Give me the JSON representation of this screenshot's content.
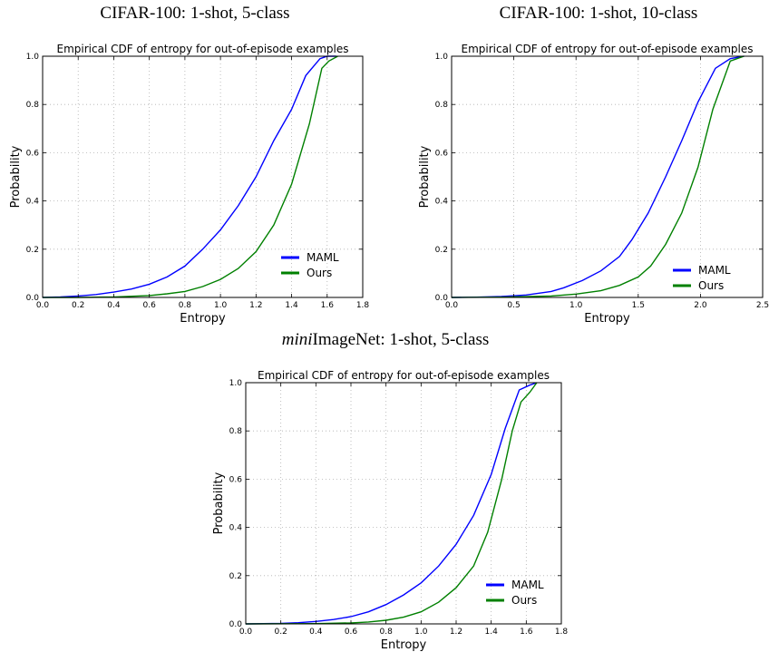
{
  "panels": [
    {
      "caption_prefix": "",
      "caption_rest": "CIFAR-100: 1-shot, 5-class"
    },
    {
      "caption_prefix": "",
      "caption_rest": "CIFAR-100: 1-shot, 10-class"
    },
    {
      "caption_prefix": "mini",
      "caption_rest": "ImageNet: 1-shot, 5-class"
    }
  ],
  "chart_data": [
    {
      "type": "line",
      "title": "Empirical CDF of entropy for out-of-episode examples",
      "xlabel": "Entropy",
      "ylabel": "Probability",
      "xlim": [
        0,
        1.8
      ],
      "ylim": [
        0,
        1.0
      ],
      "xticks": [
        "0.0",
        "0.2",
        "0.4",
        "0.6",
        "0.8",
        "1.0",
        "1.2",
        "1.4",
        "1.6",
        "1.8"
      ],
      "yticks": [
        "0.0",
        "0.2",
        "0.4",
        "0.6",
        "0.8",
        "1.0"
      ],
      "grid": true,
      "legend": "lower-right",
      "series": [
        {
          "name": "MAML",
          "color": "#0000ff",
          "x": [
            0,
            0.1,
            0.2,
            0.3,
            0.4,
            0.5,
            0.6,
            0.7,
            0.8,
            0.9,
            1.0,
            1.1,
            1.2,
            1.3,
            1.4,
            1.48,
            1.56,
            1.6,
            1.65
          ],
          "y": [
            0,
            0.002,
            0.006,
            0.012,
            0.022,
            0.035,
            0.055,
            0.085,
            0.13,
            0.2,
            0.28,
            0.38,
            0.5,
            0.65,
            0.78,
            0.92,
            0.99,
            1.0,
            1.0
          ]
        },
        {
          "name": "Ours",
          "color": "#008000",
          "x": [
            0,
            0.2,
            0.4,
            0.6,
            0.7,
            0.8,
            0.9,
            1.0,
            1.1,
            1.2,
            1.3,
            1.4,
            1.5,
            1.57,
            1.61,
            1.66
          ],
          "y": [
            0,
            0,
            0.002,
            0.008,
            0.015,
            0.025,
            0.045,
            0.075,
            0.12,
            0.19,
            0.3,
            0.47,
            0.72,
            0.95,
            0.98,
            1.0
          ]
        }
      ]
    },
    {
      "type": "line",
      "title": "Empirical CDF of entropy for out-of-episode examples",
      "xlabel": "Entropy",
      "ylabel": "Probability",
      "xlim": [
        0,
        2.5
      ],
      "ylim": [
        0,
        1.0
      ],
      "xticks": [
        "0.0",
        "0.5",
        "1.0",
        "1.5",
        "2.0",
        "2.5"
      ],
      "yticks": [
        "0.0",
        "0.2",
        "0.4",
        "0.6",
        "0.8",
        "1.0"
      ],
      "grid": true,
      "legend": "lower-right",
      "series": [
        {
          "name": "MAML",
          "color": "#0000ff",
          "x": [
            0,
            0.2,
            0.4,
            0.6,
            0.8,
            0.9,
            1.05,
            1.2,
            1.35,
            1.45,
            1.58,
            1.72,
            1.85,
            1.98,
            2.12,
            2.24,
            2.35
          ],
          "y": [
            0,
            0.001,
            0.004,
            0.01,
            0.025,
            0.04,
            0.07,
            0.11,
            0.17,
            0.24,
            0.35,
            0.5,
            0.65,
            0.81,
            0.95,
            0.99,
            1.0
          ]
        },
        {
          "name": "Ours",
          "color": "#008000",
          "x": [
            0,
            0.4,
            0.8,
            1.0,
            1.2,
            1.35,
            1.5,
            1.6,
            1.72,
            1.85,
            1.98,
            2.1,
            2.24,
            2.35
          ],
          "y": [
            0,
            0.001,
            0.006,
            0.014,
            0.028,
            0.05,
            0.085,
            0.13,
            0.22,
            0.35,
            0.54,
            0.78,
            0.98,
            1.0
          ]
        }
      ]
    },
    {
      "type": "line",
      "title": "Empirical CDF of entropy for out-of-episode examples",
      "xlabel": "Entropy",
      "ylabel": "Probability",
      "xlim": [
        0,
        1.8
      ],
      "ylim": [
        0,
        1.0
      ],
      "xticks": [
        "0.0",
        "0.2",
        "0.4",
        "0.6",
        "0.8",
        "1.0",
        "1.2",
        "1.4",
        "1.6",
        "1.8"
      ],
      "yticks": [
        "0.0",
        "0.2",
        "0.4",
        "0.6",
        "0.8",
        "1.0"
      ],
      "grid": true,
      "legend": "lower-right",
      "series": [
        {
          "name": "MAML",
          "color": "#0000ff",
          "x": [
            0,
            0.2,
            0.3,
            0.4,
            0.5,
            0.6,
            0.7,
            0.8,
            0.9,
            1.0,
            1.1,
            1.2,
            1.3,
            1.4,
            1.48,
            1.56,
            1.62,
            1.66
          ],
          "y": [
            0,
            0.002,
            0.005,
            0.01,
            0.018,
            0.03,
            0.05,
            0.08,
            0.12,
            0.17,
            0.24,
            0.33,
            0.45,
            0.62,
            0.81,
            0.97,
            0.99,
            1.0
          ]
        },
        {
          "name": "Ours",
          "color": "#008000",
          "x": [
            0,
            0.4,
            0.6,
            0.7,
            0.8,
            0.9,
            1.0,
            1.1,
            1.2,
            1.3,
            1.38,
            1.46,
            1.52,
            1.57,
            1.62,
            1.66
          ],
          "y": [
            0,
            0.001,
            0.004,
            0.008,
            0.015,
            0.028,
            0.05,
            0.09,
            0.15,
            0.24,
            0.38,
            0.6,
            0.8,
            0.92,
            0.96,
            1.0
          ]
        }
      ]
    }
  ]
}
